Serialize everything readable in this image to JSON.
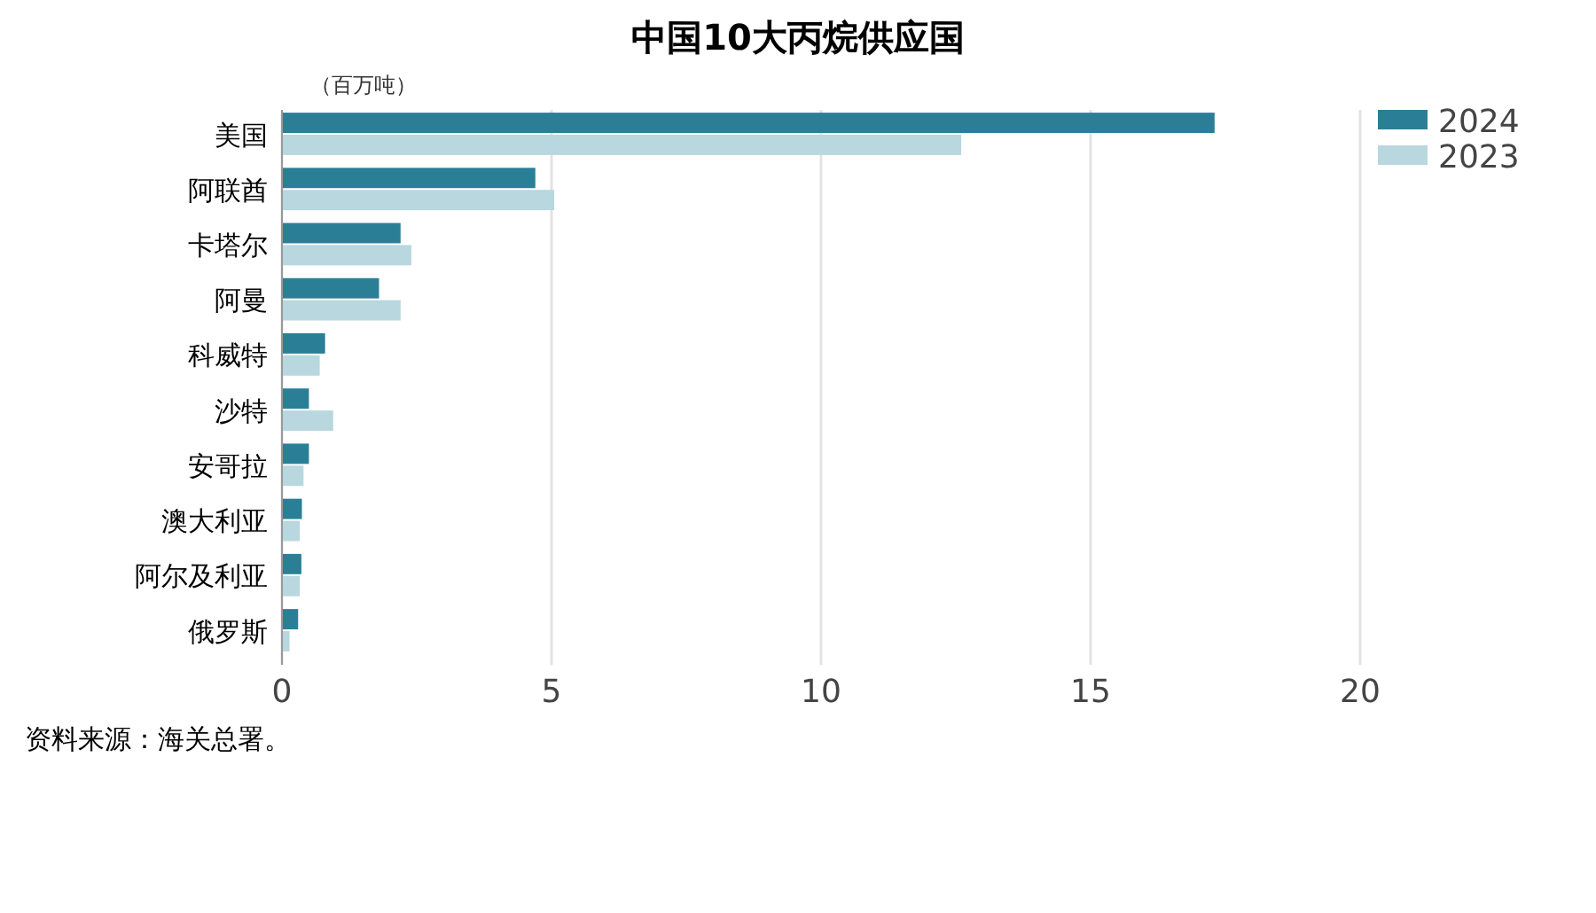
{
  "chart_data": {
    "type": "bar",
    "orientation": "horizontal",
    "title": "中国10大丙烷供应国",
    "categories": [
      "美国",
      "阿联酋",
      "卡塔尔",
      "阿曼",
      "科威特",
      "沙特",
      "安哥拉",
      "澳大利亚",
      "阿尔及利亚",
      "俄罗斯"
    ],
    "series": [
      {
        "name": "2024",
        "color": "#2a7f96",
        "values": [
          17.3,
          4.7,
          2.2,
          1.8,
          0.8,
          0.5,
          0.5,
          0.37,
          0.36,
          0.3
        ]
      },
      {
        "name": "2023",
        "color": "#b8d7de",
        "values": [
          12.6,
          5.05,
          2.4,
          2.2,
          0.7,
          0.95,
          0.4,
          0.33,
          0.33,
          0.14
        ]
      }
    ],
    "xlim": [
      0,
      20
    ],
    "xticks": [
      0,
      5,
      10,
      15,
      20
    ],
    "grid": "x",
    "legend": "top right",
    "annotations": [
      "（百万吨）",
      "资料来源：海关总署。"
    ]
  }
}
